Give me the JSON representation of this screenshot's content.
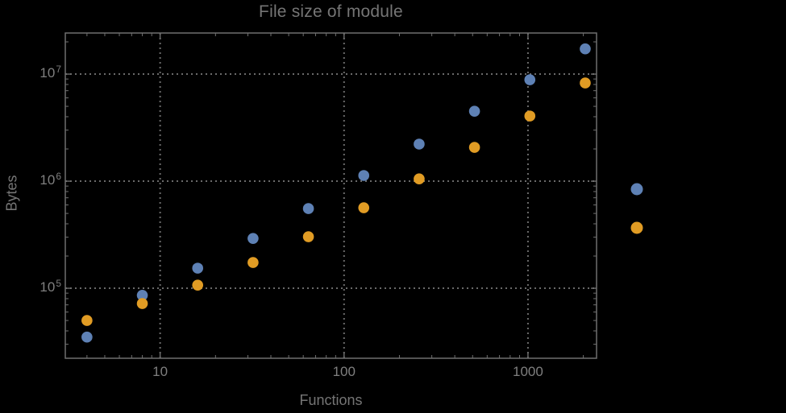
{
  "chart_data": {
    "type": "scatter",
    "title": "File size of module",
    "xlabel": "Functions",
    "ylabel": "Bytes",
    "xscale": "log",
    "yscale": "log",
    "xlim": [
      3.05,
      2360
    ],
    "ylim": [
      22200,
      24200000
    ],
    "grid": {
      "visible": true,
      "style": "dotted",
      "color": "#6a6a6a"
    },
    "frame_color": "#6f6f6f",
    "background_color": "#000000",
    "text_color": "#757575",
    "tick_label_color": "#7f7f7f",
    "x_ticks": [
      {
        "value": 10,
        "label": "10"
      },
      {
        "value": 100,
        "label": "100"
      },
      {
        "value": 1000,
        "label": "1000"
      }
    ],
    "y_ticks": [
      {
        "value": 100000,
        "base": "10",
        "exponent": "5"
      },
      {
        "value": 1000000,
        "base": "10",
        "exponent": "6"
      },
      {
        "value": 10000000,
        "base": "10",
        "exponent": "7"
      }
    ],
    "x": [
      4,
      8,
      16,
      32,
      64,
      128,
      256,
      512,
      1024,
      2048
    ],
    "series": [
      {
        "name": "series-blue",
        "color": "#5E81B5",
        "values": [
          35000,
          86000,
          154000,
          292000,
          555000,
          1130000,
          2220000,
          4500000,
          8850000,
          17200000
        ]
      },
      {
        "name": "series-orange",
        "color": "#E19C24",
        "values": [
          50000,
          72000,
          107000,
          174000,
          303000,
          565000,
          1050000,
          2070000,
          4060000,
          8260000
        ]
      }
    ],
    "legend": {
      "labels_visible": false,
      "markers": [
        {
          "name": "legend-marker-blue",
          "color": "#5E81B5"
        },
        {
          "name": "legend-marker-orange",
          "color": "#E19C24"
        }
      ]
    }
  }
}
